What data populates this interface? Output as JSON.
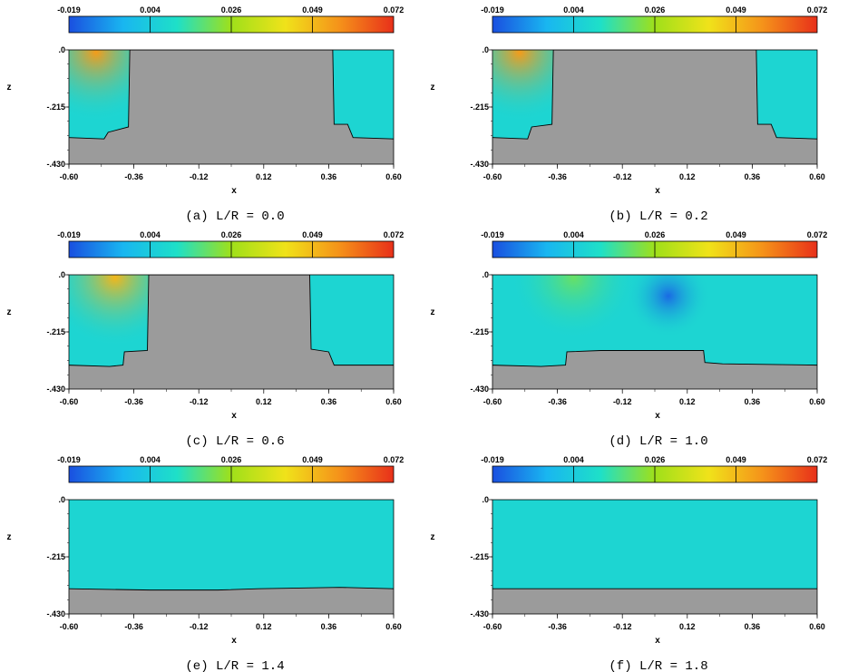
{
  "colorbar": {
    "labels": [
      "-0.019",
      "0.004",
      "0.026",
      "0.049",
      "0.072"
    ],
    "values": [
      -0.019,
      0.004,
      0.026,
      0.049,
      0.072
    ],
    "colors": [
      "#1a4fe0",
      "#19b6f0",
      "#1ee0c8",
      "#9fe01a",
      "#f0e21a",
      "#f5921a",
      "#e8301a"
    ]
  },
  "chart_data": [
    {
      "type": "heatmap",
      "caption": "(a) L/R = 0.0",
      "xlabel": "x",
      "ylabel": "z",
      "xticks": [
        "-0.60",
        "-0.36",
        "-0.12",
        "0.12",
        "0.36",
        "0.60"
      ],
      "yticks": [
        ".0",
        "-.215",
        "-.430"
      ],
      "xlim": [
        -0.6,
        0.6
      ],
      "ylim": [
        -0.43,
        0.0
      ],
      "bed_profile": [
        [
          -0.6,
          -0.33
        ],
        [
          -0.47,
          -0.335
        ],
        [
          -0.455,
          -0.31
        ],
        [
          -0.38,
          -0.29
        ],
        [
          -0.375,
          0.0
        ],
        [
          0.375,
          0.0
        ],
        [
          0.38,
          -0.28
        ],
        [
          0.43,
          -0.28
        ],
        [
          0.45,
          -0.33
        ],
        [
          0.6,
          -0.335
        ]
      ],
      "hotspots": [
        {
          "x": -0.5,
          "z": -0.01,
          "r": 0.2,
          "v": 0.055
        }
      ]
    },
    {
      "type": "heatmap",
      "caption": "(b) L/R = 0.2",
      "xlabel": "x",
      "ylabel": "z",
      "xticks": [
        "-0.60",
        "-0.36",
        "-0.12",
        "0.12",
        "0.36",
        "0.60"
      ],
      "yticks": [
        ".0",
        "-.215",
        "-.430"
      ],
      "xlim": [
        -0.6,
        0.6
      ],
      "ylim": [
        -0.43,
        0.0
      ],
      "bed_profile": [
        [
          -0.6,
          -0.33
        ],
        [
          -0.47,
          -0.335
        ],
        [
          -0.455,
          -0.29
        ],
        [
          -0.38,
          -0.28
        ],
        [
          -0.375,
          0.0
        ],
        [
          0.375,
          0.0
        ],
        [
          0.38,
          -0.28
        ],
        [
          0.43,
          -0.28
        ],
        [
          0.45,
          -0.33
        ],
        [
          0.6,
          -0.335
        ]
      ],
      "hotspots": [
        {
          "x": -0.5,
          "z": -0.01,
          "r": 0.2,
          "v": 0.055
        }
      ]
    },
    {
      "type": "heatmap",
      "caption": "(c) L/R = 0.6",
      "xlabel": "x",
      "ylabel": "z",
      "xticks": [
        "-0.60",
        "-0.36",
        "-0.12",
        "0.12",
        "0.36",
        "0.60"
      ],
      "yticks": [
        ".0",
        "-.215",
        "-.430"
      ],
      "xlim": [
        -0.6,
        0.6
      ],
      "ylim": [
        -0.43,
        0.0
      ],
      "bed_profile": [
        [
          -0.6,
          -0.34
        ],
        [
          -0.45,
          -0.345
        ],
        [
          -0.4,
          -0.34
        ],
        [
          -0.395,
          -0.29
        ],
        [
          -0.31,
          -0.285
        ],
        [
          -0.305,
          0.0
        ],
        [
          0.29,
          0.0
        ],
        [
          0.295,
          -0.28
        ],
        [
          0.36,
          -0.29
        ],
        [
          0.38,
          -0.34
        ],
        [
          0.6,
          -0.34
        ]
      ],
      "hotspots": [
        {
          "x": -0.43,
          "z": -0.01,
          "r": 0.2,
          "v": 0.05
        }
      ]
    },
    {
      "type": "heatmap",
      "caption": "(d) L/R = 1.0",
      "xlabel": "x",
      "ylabel": "z",
      "xticks": [
        "-0.60",
        "-0.36",
        "-0.12",
        "0.12",
        "0.36",
        "0.60"
      ],
      "yticks": [
        ".0",
        "-.215",
        "-.430"
      ],
      "xlim": [
        -0.6,
        0.6
      ],
      "ylim": [
        -0.43,
        0.0
      ],
      "bed_profile": [
        [
          -0.6,
          -0.34
        ],
        [
          -0.42,
          -0.345
        ],
        [
          -0.33,
          -0.34
        ],
        [
          -0.325,
          -0.29
        ],
        [
          -0.2,
          -0.285
        ],
        [
          0.18,
          -0.285
        ],
        [
          0.185,
          -0.33
        ],
        [
          0.25,
          -0.335
        ],
        [
          0.6,
          -0.34
        ]
      ],
      "hotspots": [
        {
          "x": -0.3,
          "z": -0.01,
          "r": 0.18,
          "v": 0.02
        },
        {
          "x": 0.05,
          "z": -0.08,
          "r": 0.12,
          "v": -0.015
        }
      ]
    },
    {
      "type": "heatmap",
      "caption": "(e) L/R = 1.4",
      "xlabel": "x",
      "ylabel": "z",
      "xticks": [
        "-0.60",
        "-0.36",
        "-0.12",
        "0.12",
        "0.36",
        "0.60"
      ],
      "yticks": [
        ".0",
        "-.215",
        "-.430"
      ],
      "xlim": [
        -0.6,
        0.6
      ],
      "ylim": [
        -0.43,
        0.0
      ],
      "bed_profile": [
        [
          -0.6,
          -0.335
        ],
        [
          -0.3,
          -0.34
        ],
        [
          -0.05,
          -0.34
        ],
        [
          0.1,
          -0.335
        ],
        [
          0.4,
          -0.33
        ],
        [
          0.6,
          -0.335
        ]
      ],
      "hotspots": []
    },
    {
      "type": "heatmap",
      "caption": "(f) L/R = 1.8",
      "xlabel": "x",
      "ylabel": "z",
      "xticks": [
        "-0.60",
        "-0.36",
        "-0.12",
        "0.12",
        "0.36",
        "0.60"
      ],
      "yticks": [
        ".0",
        "-.215",
        "-.430"
      ],
      "xlim": [
        -0.6,
        0.6
      ],
      "ylim": [
        -0.43,
        0.0
      ],
      "bed_profile": [
        [
          -0.6,
          -0.335
        ],
        [
          0.6,
          -0.335
        ]
      ],
      "hotspots": []
    }
  ]
}
